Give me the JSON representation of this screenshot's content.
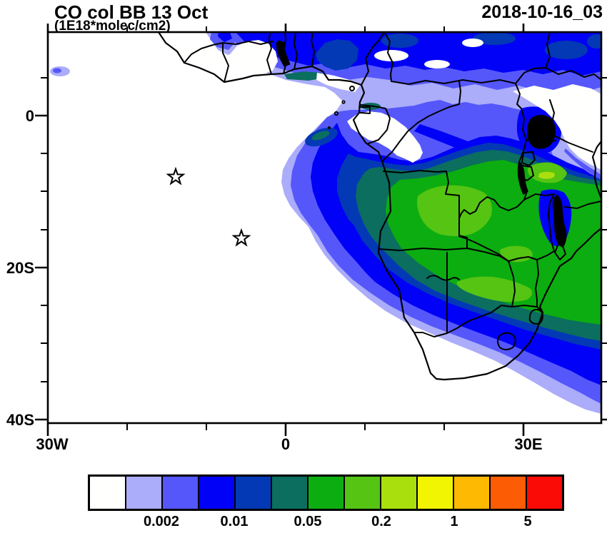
{
  "title": "CO col BB 13 Oct",
  "subtitle": "(1E18*molec/cm2)",
  "date_stamp": "2018-10-16_03",
  "axes": {
    "lat_labels": [
      "0",
      "20S",
      "40S"
    ],
    "lon_labels": [
      "30W",
      "0",
      "30E"
    ]
  },
  "colorbar": {
    "colors": [
      "#FFFFFE",
      "#ABACFA",
      "#5557FB",
      "#0001F6",
      "#0339B5",
      "#0B6E5F",
      "#0CAD10",
      "#55C413",
      "#AADF0E",
      "#F2F501",
      "#FEB902",
      "#FC5C03",
      "#FA0B05"
    ],
    "labels": [
      "0.002",
      "0.01",
      "0.05",
      "0.2",
      "1",
      "5"
    ]
  },
  "chart_data": {
    "type": "heatmap",
    "title": "CO col BB 13 Oct",
    "units": "1E18*molec/cm2",
    "valid_time": "2018-10-16_03",
    "projection": "cylindrical lat/lon over Africa",
    "lon_range": [
      "30W",
      "40E"
    ],
    "lat_range": [
      "11N",
      "40.5S"
    ],
    "x_tick_labels": [
      "30W",
      "0",
      "30E"
    ],
    "y_tick_labels": [
      "0",
      "20S",
      "40S"
    ],
    "contour_levels": [
      0.001,
      0.002,
      0.005,
      0.01,
      0.02,
      0.05,
      0.1,
      0.2,
      0.5,
      1,
      2,
      5
    ],
    "labeled_levels": [
      0.002,
      0.01,
      0.05,
      0.2,
      1,
      5
    ],
    "level_colors": [
      "#FFFFFE",
      "#ABACFA",
      "#5557FB",
      "#0001F6",
      "#0339B5",
      "#0B6E5F",
      "#0CAD10",
      "#55C413",
      "#AADF0E",
      "#F2F501",
      "#FEB902",
      "#FC5C03",
      "#FA0B05"
    ],
    "features": [
      "equatorial band of enhanced CO (0.002-0.02) along 5N-10N across the whole map width",
      "large biomass-burning plume with 0.05-0.2 core over Angola, Zambia, southern DRC, Zimbabwe, Malawi and Tanzania",
      "plume extends offshore over the SE Atlantic near Angola and over the Indian Ocean toward the SE corner",
      "clean air (<0.001) over the subtropical South Atlantic, Namibia/South Africa interior, Gabon gap and Kenya"
    ],
    "markers": [
      {
        "symbol": "star",
        "lon": "14W",
        "lat": "8S"
      },
      {
        "symbol": "star",
        "lon": "5.5W",
        "lat": "16S"
      }
    ]
  }
}
